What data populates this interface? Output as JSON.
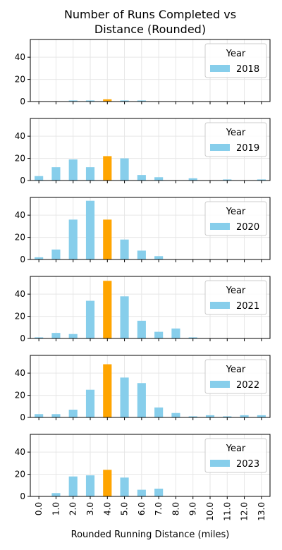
{
  "chart_data": {
    "type": "bar",
    "title_lines": [
      "Number of Runs Completed vs",
      "Distance (Rounded)"
    ],
    "xlabel": "Rounded Running Distance (miles)",
    "categories": [
      "0.0",
      "1.0",
      "2.0",
      "3.0",
      "4.0",
      "5.0",
      "6.0",
      "7.0",
      "8.0",
      "9.0",
      "10.0",
      "11.0",
      "12.0",
      "13.0"
    ],
    "ylim": [
      0,
      56
    ],
    "yticks": [
      0,
      20,
      40
    ],
    "grid": true,
    "legend_title": "Year",
    "legend_placement": "top-right",
    "colors": {
      "default": "#87CEEB",
      "highlight": "#FFA500"
    },
    "highlight_category": "4.0",
    "panels": [
      {
        "year": "2018",
        "values": [
          0,
          0,
          1,
          1,
          2,
          1,
          1,
          0,
          0,
          0,
          0,
          0,
          0,
          0
        ]
      },
      {
        "year": "2019",
        "values": [
          4,
          12,
          19,
          12,
          22,
          20,
          5,
          3,
          0,
          2,
          0,
          1,
          0,
          1
        ]
      },
      {
        "year": "2020",
        "values": [
          2,
          9,
          36,
          53,
          36,
          18,
          8,
          3,
          0,
          0,
          0,
          0,
          0,
          0
        ]
      },
      {
        "year": "2021",
        "values": [
          1,
          5,
          4,
          34,
          52,
          38,
          16,
          6,
          9,
          1,
          0,
          0,
          0,
          0
        ]
      },
      {
        "year": "2022",
        "values": [
          3,
          3,
          7,
          25,
          48,
          36,
          31,
          9,
          4,
          1,
          2,
          1,
          2,
          2
        ]
      },
      {
        "year": "2023",
        "values": [
          0,
          3,
          18,
          19,
          24,
          17,
          6,
          7,
          0,
          0,
          0,
          0,
          0,
          0
        ]
      }
    ]
  }
}
